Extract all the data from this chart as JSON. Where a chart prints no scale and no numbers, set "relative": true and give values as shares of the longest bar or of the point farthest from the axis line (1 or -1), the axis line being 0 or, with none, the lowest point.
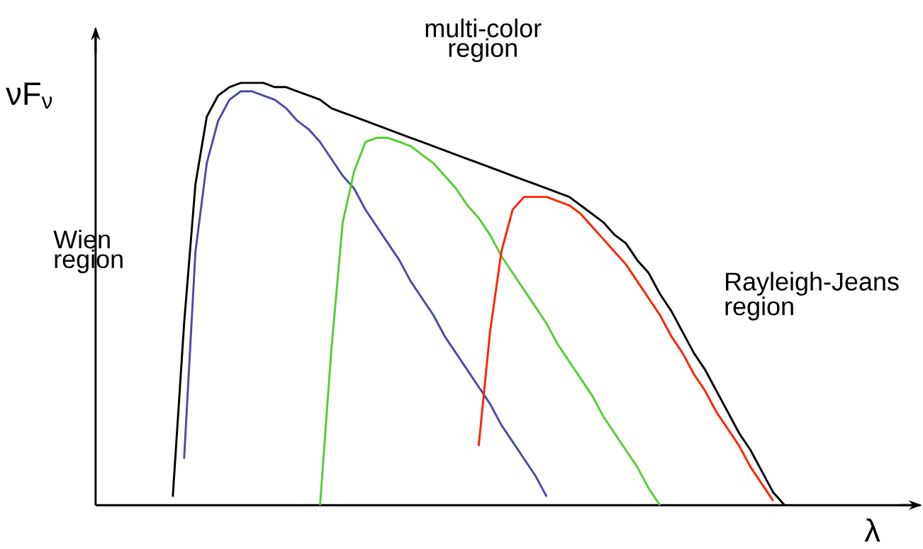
{
  "chart_data": {
    "type": "line",
    "relative": true,
    "xlabel": "λ",
    "ylabel": "νF$_{ν}$",
    "annotations": [
      "multi-color region",
      "Wien region",
      "Rayleigh-Jeans region"
    ],
    "categories": [
      null,
      null,
      null,
      null,
      null,
      null,
      null,
      null,
      null,
      null,
      null,
      null,
      null,
      null,
      null,
      null,
      null,
      null,
      null,
      null,
      null,
      null,
      null,
      null,
      null,
      null,
      null,
      null,
      null,
      null,
      null,
      null,
      null,
      null,
      null,
      null,
      null,
      null,
      null,
      null,
      null,
      null,
      null,
      null,
      null,
      null,
      null,
      null,
      null,
      null,
      null,
      null,
      null,
      null,
      null
    ],
    "series": [
      {
        "color": "#000000",
        "values": [
          0.02,
          0.43,
          0.76,
          0.92,
          0.97,
          0.99,
          1.0,
          1.0,
          1.0,
          0.99,
          0.99,
          0.98,
          0.97,
          0.96,
          0.94,
          0.93,
          0.92,
          0.91,
          0.9,
          0.89,
          0.88,
          0.87,
          0.86,
          0.85,
          0.84,
          0.83,
          0.82,
          0.81,
          0.8,
          0.79,
          0.78,
          0.77,
          0.76,
          0.75,
          0.74,
          0.73,
          0.71,
          0.69,
          0.67,
          0.64,
          0.62,
          0.58,
          0.55,
          0.5,
          0.46,
          0.41,
          0.36,
          0.32,
          0.27,
          0.22,
          0.17,
          0.13,
          0.08,
          0.03,
          0.0
        ]
      },
      {
        "color": "#4a4aaa",
        "values": [
          null,
          0.11,
          0.6,
          0.81,
          0.91,
          0.96,
          0.98,
          0.98,
          0.97,
          0.96,
          0.94,
          0.91,
          0.89,
          0.86,
          0.82,
          0.78,
          0.75,
          0.7,
          0.66,
          0.62,
          0.58,
          0.53,
          0.49,
          0.45,
          0.4,
          0.36,
          0.32,
          0.28,
          0.24,
          0.19,
          0.15,
          0.11,
          0.07,
          0.02,
          null,
          null,
          null,
          null,
          null,
          null,
          null,
          null,
          null,
          null,
          null,
          null,
          null,
          null,
          null,
          null,
          null,
          null,
          null,
          null,
          null
        ]
      },
      {
        "color": "#55cc33",
        "values": [
          null,
          null,
          null,
          null,
          null,
          null,
          null,
          null,
          null,
          null,
          null,
          null,
          null,
          0.0,
          0.37,
          0.67,
          0.79,
          0.86,
          0.87,
          0.87,
          0.86,
          0.85,
          0.83,
          0.81,
          0.78,
          0.75,
          0.71,
          0.68,
          0.64,
          0.59,
          0.55,
          0.51,
          0.47,
          0.43,
          0.38,
          0.34,
          0.3,
          0.26,
          0.21,
          0.17,
          0.13,
          0.09,
          0.04,
          0.0,
          null,
          null,
          null,
          null,
          null,
          null,
          null,
          null,
          null,
          null,
          null
        ]
      },
      {
        "color": "#ff2200",
        "values": [
          null,
          null,
          null,
          null,
          null,
          null,
          null,
          null,
          null,
          null,
          null,
          null,
          null,
          null,
          null,
          null,
          null,
          null,
          null,
          null,
          null,
          null,
          null,
          null,
          null,
          null,
          null,
          0.14,
          0.41,
          0.6,
          0.7,
          0.73,
          0.73,
          0.73,
          0.72,
          0.71,
          0.69,
          0.66,
          0.63,
          0.6,
          0.57,
          0.53,
          0.49,
          0.45,
          0.4,
          0.36,
          0.31,
          0.27,
          0.22,
          0.18,
          0.14,
          0.09,
          0.05,
          0.01,
          null
        ]
      }
    ]
  }
}
